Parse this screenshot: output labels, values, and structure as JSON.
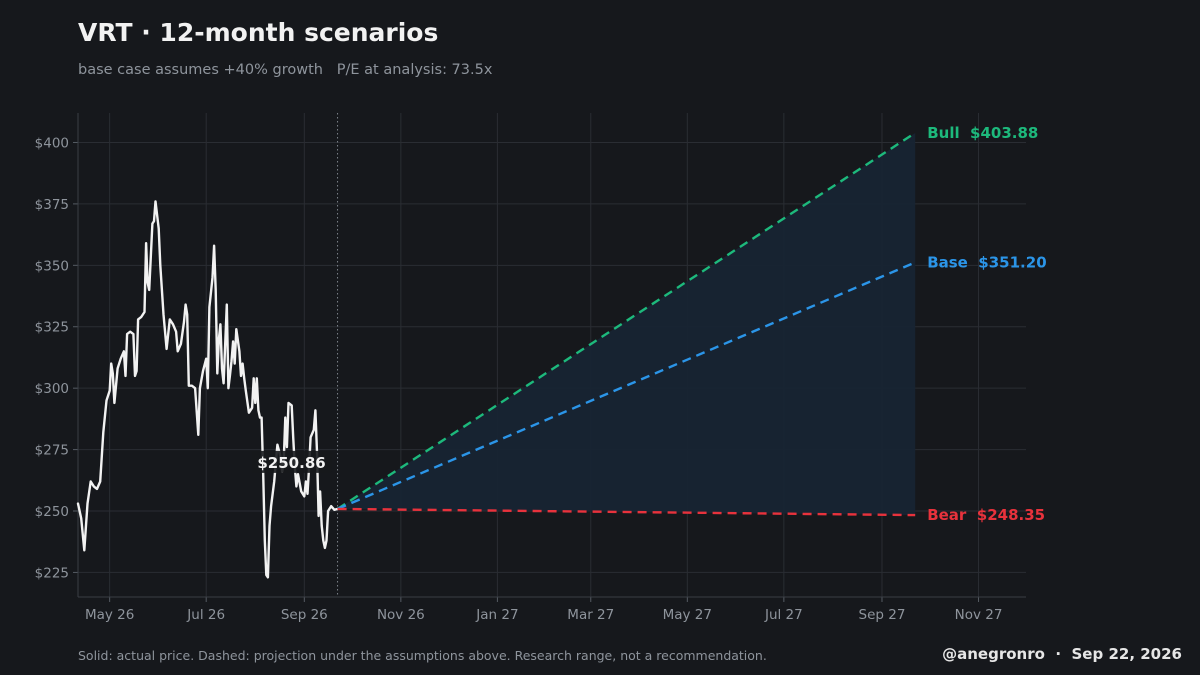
{
  "title": "VRT · 12-month scenarios",
  "subtitle": "base case assumes +40% growth   P/E at analysis: 73.5x",
  "footer": {
    "note": "Solid: actual price. Dashed: projection under the assumptions above. Research range, not a recommendation.",
    "signature": "@anegronro  ·  Sep 22, 2026"
  },
  "colors": {
    "background": "#16181c",
    "actual": "#f2f2f2",
    "bull": "#1db97c",
    "base": "#2b95e8",
    "bear": "#e8323c",
    "band": "#172433"
  },
  "chart_data": {
    "type": "line",
    "ylim": [
      215,
      412
    ],
    "xlim": [
      "2026-04-11",
      "2027-12-01"
    ],
    "y_ticks": [
      225,
      250,
      275,
      300,
      325,
      350,
      375,
      400
    ],
    "y_tick_labels": [
      "$225",
      "$250",
      "$275",
      "$300",
      "$325",
      "$350",
      "$375",
      "$400"
    ],
    "x_ticks": [
      "2026-05-01",
      "2026-07-01",
      "2026-09-01",
      "2026-11-01",
      "2027-01-01",
      "2027-03-01",
      "2027-05-01",
      "2027-07-01",
      "2027-09-01",
      "2027-11-01"
    ],
    "x_tick_labels": [
      "May 26",
      "Jul 26",
      "Sep 26",
      "Nov 26",
      "Jan 27",
      "Mar 27",
      "May 27",
      "Jul 27",
      "Sep 27",
      "Nov 27"
    ],
    "grid": true,
    "current_price_label": "$250.86",
    "analysis_date": "2026-09-22",
    "series": [
      {
        "key": "actual",
        "style": "solid",
        "points": [
          [
            "2026-04-11",
            253
          ],
          [
            "2026-04-13",
            247
          ],
          [
            "2026-04-15",
            234
          ],
          [
            "2026-04-17",
            253
          ],
          [
            "2026-04-19",
            262
          ],
          [
            "2026-04-21",
            260
          ],
          [
            "2026-04-23",
            259
          ],
          [
            "2026-04-25",
            262
          ],
          [
            "2026-04-27",
            282
          ],
          [
            "2026-04-29",
            295
          ],
          [
            "2026-05-01",
            299
          ],
          [
            "2026-05-02",
            310
          ],
          [
            "2026-05-03",
            306
          ],
          [
            "2026-05-04",
            294
          ],
          [
            "2026-05-06",
            308
          ],
          [
            "2026-05-08",
            312
          ],
          [
            "2026-05-10",
            315
          ],
          [
            "2026-05-11",
            305
          ],
          [
            "2026-05-12",
            322
          ],
          [
            "2026-05-14",
            323
          ],
          [
            "2026-05-16",
            322
          ],
          [
            "2026-05-17",
            305
          ],
          [
            "2026-05-18",
            307
          ],
          [
            "2026-05-19",
            328
          ],
          [
            "2026-05-21",
            329
          ],
          [
            "2026-05-23",
            331
          ],
          [
            "2026-05-24",
            359
          ],
          [
            "2026-05-25",
            343
          ],
          [
            "2026-05-26",
            340
          ],
          [
            "2026-05-28",
            367
          ],
          [
            "2026-05-29",
            368
          ],
          [
            "2026-05-30",
            376
          ],
          [
            "2026-06-01",
            365
          ],
          [
            "2026-06-02",
            350
          ],
          [
            "2026-06-04",
            330
          ],
          [
            "2026-06-06",
            316
          ],
          [
            "2026-06-08",
            328
          ],
          [
            "2026-06-10",
            326
          ],
          [
            "2026-06-12",
            323
          ],
          [
            "2026-06-13",
            315
          ],
          [
            "2026-06-15",
            318
          ],
          [
            "2026-06-17",
            327
          ],
          [
            "2026-06-18",
            334
          ],
          [
            "2026-06-19",
            330
          ],
          [
            "2026-06-20",
            301
          ],
          [
            "2026-06-22",
            301
          ],
          [
            "2026-06-24",
            300
          ],
          [
            "2026-06-26",
            281
          ],
          [
            "2026-06-27",
            300
          ],
          [
            "2026-06-29",
            307
          ],
          [
            "2026-07-01",
            312
          ],
          [
            "2026-07-02",
            300
          ],
          [
            "2026-07-03",
            333
          ],
          [
            "2026-07-05",
            345
          ],
          [
            "2026-07-06",
            358
          ],
          [
            "2026-07-07",
            340
          ],
          [
            "2026-07-08",
            306
          ],
          [
            "2026-07-09",
            320
          ],
          [
            "2026-07-10",
            326
          ],
          [
            "2026-07-11",
            308
          ],
          [
            "2026-07-12",
            302
          ],
          [
            "2026-07-14",
            334
          ],
          [
            "2026-07-15",
            300
          ],
          [
            "2026-07-16",
            305
          ],
          [
            "2026-07-17",
            311
          ],
          [
            "2026-07-18",
            319
          ],
          [
            "2026-07-19",
            310
          ],
          [
            "2026-07-20",
            324
          ],
          [
            "2026-07-22",
            315
          ],
          [
            "2026-07-23",
            305
          ],
          [
            "2026-07-24",
            310
          ],
          [
            "2026-07-25",
            304
          ],
          [
            "2026-07-26",
            299
          ],
          [
            "2026-07-28",
            290
          ],
          [
            "2026-07-30",
            292
          ],
          [
            "2026-07-31",
            304
          ],
          [
            "2026-08-01",
            294
          ],
          [
            "2026-08-02",
            304
          ],
          [
            "2026-08-03",
            291
          ],
          [
            "2026-08-04",
            288
          ],
          [
            "2026-08-05",
            288
          ],
          [
            "2026-08-06",
            265
          ],
          [
            "2026-08-07",
            238
          ],
          [
            "2026-08-08",
            224
          ],
          [
            "2026-08-09",
            223
          ],
          [
            "2026-08-10",
            244
          ],
          [
            "2026-08-11",
            252
          ],
          [
            "2026-08-13",
            262
          ],
          [
            "2026-08-15",
            277
          ],
          [
            "2026-08-17",
            272
          ],
          [
            "2026-08-18",
            266
          ],
          [
            "2026-08-19",
            270
          ],
          [
            "2026-08-20",
            288
          ],
          [
            "2026-08-21",
            276
          ],
          [
            "2026-08-22",
            294
          ],
          [
            "2026-08-24",
            293
          ],
          [
            "2026-08-25",
            280
          ],
          [
            "2026-08-26",
            268
          ],
          [
            "2026-08-27",
            260
          ],
          [
            "2026-08-28",
            265
          ],
          [
            "2026-08-30",
            258
          ],
          [
            "2026-09-01",
            256
          ],
          [
            "2026-09-02",
            262
          ],
          [
            "2026-09-03",
            257
          ],
          [
            "2026-09-04",
            268
          ],
          [
            "2026-09-05",
            280
          ],
          [
            "2026-09-07",
            283
          ],
          [
            "2026-09-08",
            291
          ],
          [
            "2026-09-09",
            274
          ],
          [
            "2026-09-10",
            248
          ],
          [
            "2026-09-11",
            258
          ],
          [
            "2026-09-12",
            244
          ],
          [
            "2026-09-13",
            238
          ],
          [
            "2026-09-14",
            235
          ],
          [
            "2026-09-15",
            238
          ],
          [
            "2026-09-16",
            250
          ],
          [
            "2026-09-18",
            252
          ],
          [
            "2026-09-20",
            250.5
          ],
          [
            "2026-09-22",
            250.86
          ]
        ]
      },
      {
        "key": "bull",
        "name": "Bull",
        "style": "dashed",
        "points": [
          [
            "2026-09-22",
            250.86
          ],
          [
            "2027-09-22",
            403.88
          ]
        ],
        "label": "Bull  $403.88"
      },
      {
        "key": "base",
        "name": "Base",
        "style": "dashed",
        "points": [
          [
            "2026-09-22",
            250.86
          ],
          [
            "2027-09-22",
            351.2
          ]
        ],
        "label": "Base  $351.20"
      },
      {
        "key": "bear",
        "name": "Bear",
        "style": "dashed",
        "points": [
          [
            "2026-09-22",
            250.86
          ],
          [
            "2027-09-22",
            248.35
          ]
        ],
        "label": "Bear  $248.35"
      }
    ]
  }
}
